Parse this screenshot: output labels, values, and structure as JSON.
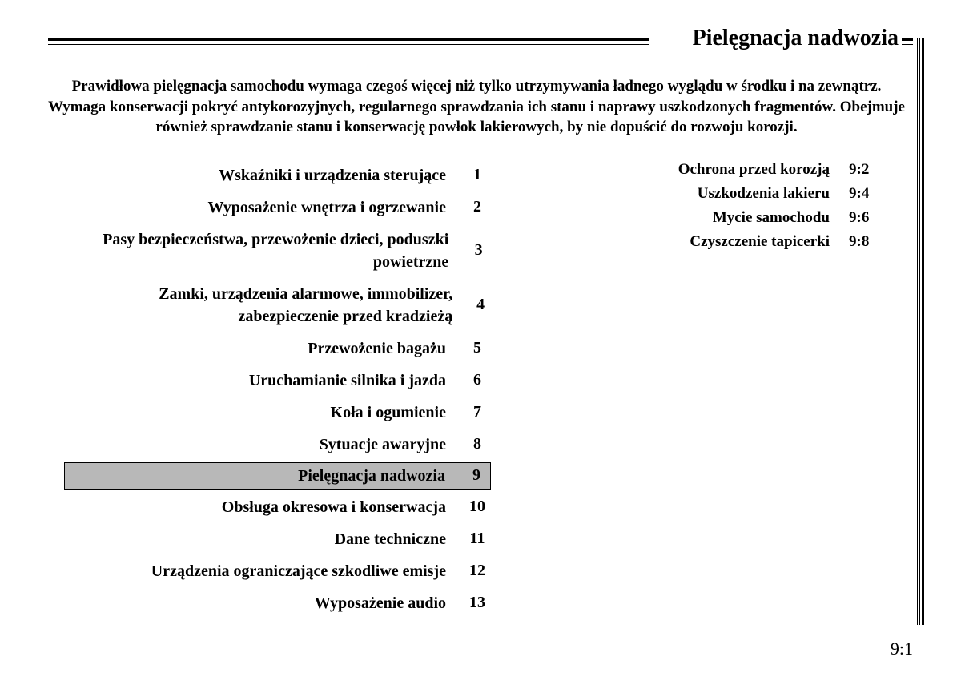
{
  "section_title": "Pielęgnacja nadwozia",
  "intro": "Prawidłowa pielęgnacja samochodu wymaga czegoś więcej niż tylko utrzymywania ładnego wyglądu w środku i na zewnątrz. Wymaga konserwacji pokryć antykorozyjnych, regularnego sprawdzania ich stanu i naprawy uszkodzonych fragmentów. Obejmuje również sprawdzanie stanu i konserwację powłok lakierowych, by nie dopuścić do rozwoju korozji.",
  "chapters": [
    {
      "label": "Wskaźniki i urządzenia sterujące",
      "num": "1"
    },
    {
      "label": "Wyposażenie wnętrza i ogrzewanie",
      "num": "2"
    },
    {
      "label": "Pasy bezpieczeństwa, przewożenie dzieci, poduszki powietrzne",
      "num": "3"
    },
    {
      "label": "Zamki, urządzenia alarmowe, immobilizer, zabezpieczenie przed kradzieżą",
      "num": "4"
    },
    {
      "label": "Przewożenie bagażu",
      "num": "5"
    },
    {
      "label": "Uruchamianie silnika i jazda",
      "num": "6"
    },
    {
      "label": "Koła i ogumienie",
      "num": "7"
    },
    {
      "label": "Sytuacje awaryjne",
      "num": "8"
    },
    {
      "label": "Pielęgnacja nadwozia",
      "num": "9"
    },
    {
      "label": "Obsługa okresowa i konserwacja",
      "num": "10"
    },
    {
      "label": "Dane techniczne",
      "num": "11"
    },
    {
      "label": "Urządzenia ograniczające szkodliwe emisje",
      "num": "12"
    },
    {
      "label": "Wyposażenie audio",
      "num": "13"
    }
  ],
  "highlight_index": 8,
  "subsections": [
    {
      "label": "Ochrona przed korozją",
      "page": "9:2"
    },
    {
      "label": "Uszkodzenia lakieru",
      "page": "9:4"
    },
    {
      "label": "Mycie samochodu",
      "page": "9:6"
    },
    {
      "label": "Czyszczenie tapicerki",
      "page": "9:8"
    }
  ],
  "page_number": "9:1",
  "colors": {
    "background": "#ffffff",
    "text": "#000000",
    "highlight_bg": "#b8b8b8"
  },
  "typography": {
    "title_size_pt": 21,
    "body_size_pt": 15,
    "page_num_size_pt": 16,
    "family": "serif"
  }
}
